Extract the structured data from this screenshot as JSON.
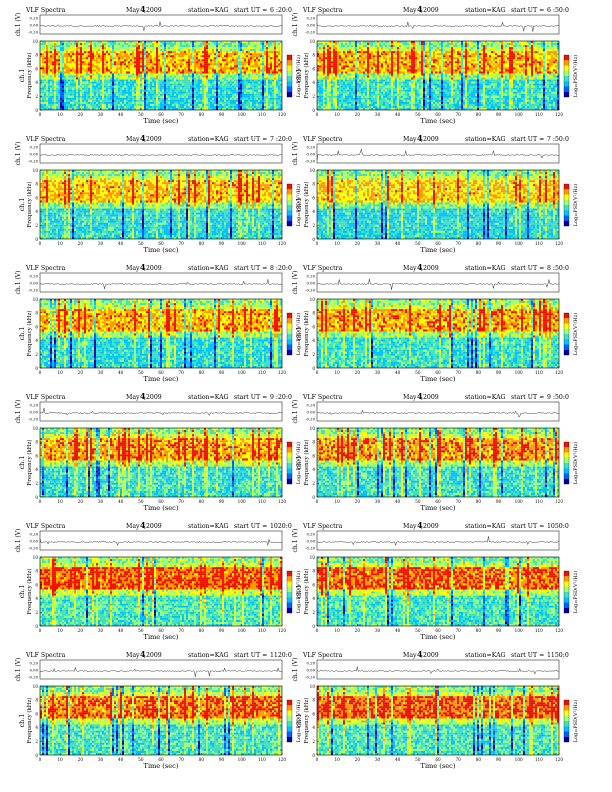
{
  "chart_data": {
    "type": "heatmap",
    "panel_common": {
      "title_left": "VLF Spectra",
      "month": "May",
      "day_digit": "4",
      "year": ",2009",
      "station": "station=KAG",
      "start_prefix": "start  UT  =",
      "ylabel_top": "ch.1 (V)",
      "ytick_top": [
        "0.20",
        "0.00",
        "-0.20"
      ],
      "ylabel_channel": "ch.1",
      "ylabel_freq": "Frequency  (kHz)",
      "yticks_freq": [
        "0",
        "2",
        "4",
        "6",
        "8",
        "10"
      ],
      "xticks": [
        "0",
        "10",
        "20",
        "30",
        "40",
        "50",
        "60",
        "70",
        "80",
        "90",
        "100",
        "110",
        "120"
      ],
      "xlabel": "Time  (sec)",
      "colorbar_label": "Log₁₀PSD(V²/Hz)",
      "colorbar_ticks": [
        "-",
        "-"
      ],
      "xlim": [
        0,
        120
      ],
      "ylim": [
        0,
        10
      ],
      "colors": [
        "#0000a0",
        "#0060ff",
        "#00c0ff",
        "#40e0c0",
        "#9aff7a",
        "#ffff00",
        "#ff9900",
        "#ee1100"
      ]
    },
    "panels": [
      {
        "start_ut": "6 :20:0",
        "intensity": 0.55,
        "seed": 11
      },
      {
        "start_ut": "6 :50:0",
        "intensity": 0.55,
        "seed": 23
      },
      {
        "start_ut": "7 :20:0",
        "intensity": 0.5,
        "seed": 37
      },
      {
        "start_ut": "7 :50:0",
        "intensity": 0.45,
        "seed": 41
      },
      {
        "start_ut": "8 :20:0",
        "intensity": 0.55,
        "seed": 53
      },
      {
        "start_ut": "8 :50:0",
        "intensity": 0.6,
        "seed": 67
      },
      {
        "start_ut": "9 :20:0",
        "intensity": 0.62,
        "seed": 71
      },
      {
        "start_ut": "9 :50:0",
        "intensity": 0.65,
        "seed": 83
      },
      {
        "start_ut": "1020:0",
        "intensity": 0.8,
        "seed": 97
      },
      {
        "start_ut": "1050:0",
        "intensity": 0.78,
        "seed": 101
      },
      {
        "start_ut": "1120:0",
        "intensity": 0.75,
        "seed": 113
      },
      {
        "start_ut": "1150:0",
        "intensity": 0.82,
        "seed": 127
      }
    ]
  }
}
